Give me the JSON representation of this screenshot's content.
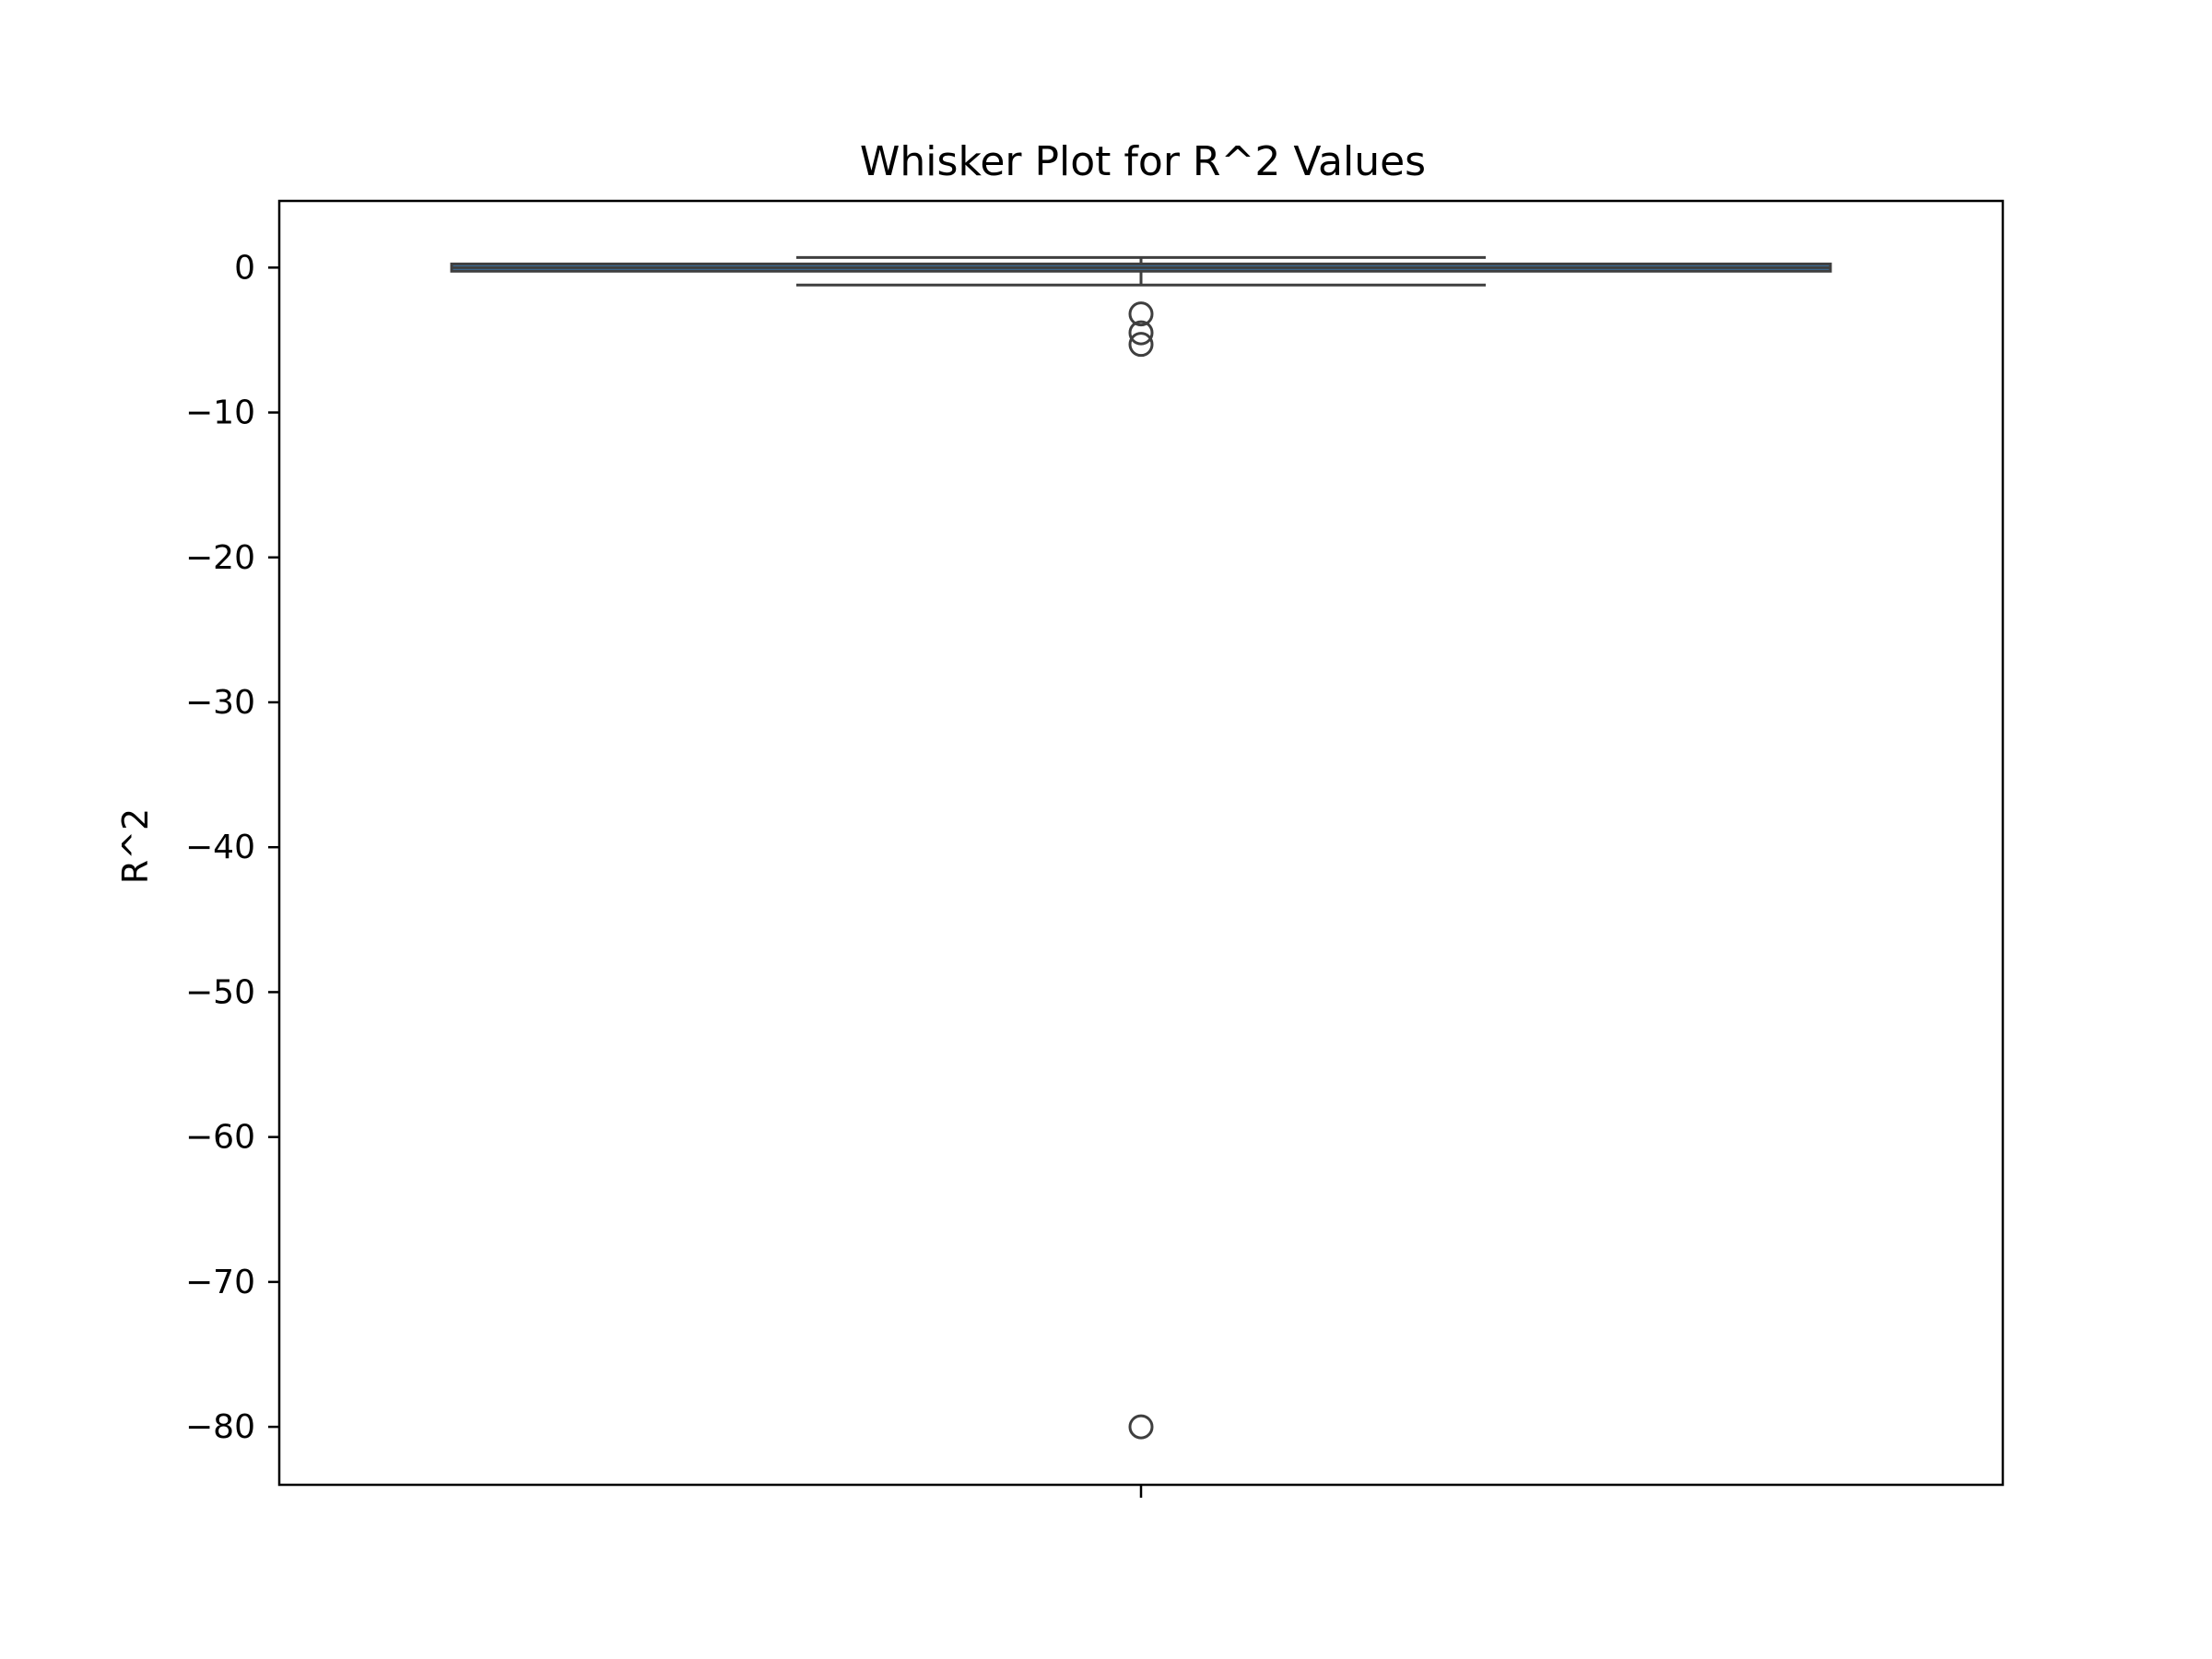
{
  "chart_data": {
    "type": "box",
    "title": "Whisker Plot for R^2 Values",
    "xlabel": "",
    "ylabel": "R^2",
    "ylim": [
      -84,
      4.6
    ],
    "yticks": [
      0,
      -10,
      -20,
      -30,
      -40,
      -50,
      -60,
      -70,
      -80
    ],
    "ytick_labels": [
      "0",
      "−10",
      "−20",
      "−30",
      "−40",
      "−50",
      "−60",
      "−70",
      "−80"
    ],
    "categories": [
      ""
    ],
    "grid": false,
    "box": {
      "q1": -0.25,
      "median": 0.0,
      "q3": 0.25,
      "whisker_low": -1.2,
      "whisker_high": 0.7,
      "outliers": [
        -3.2,
        -4.5,
        -5.3,
        -80.0
      ]
    },
    "colors": {
      "box_fill": "#3d74a6",
      "box_edge": "#3f3f3f",
      "whisker": "#3f3f3f",
      "axes": "#000000"
    }
  }
}
